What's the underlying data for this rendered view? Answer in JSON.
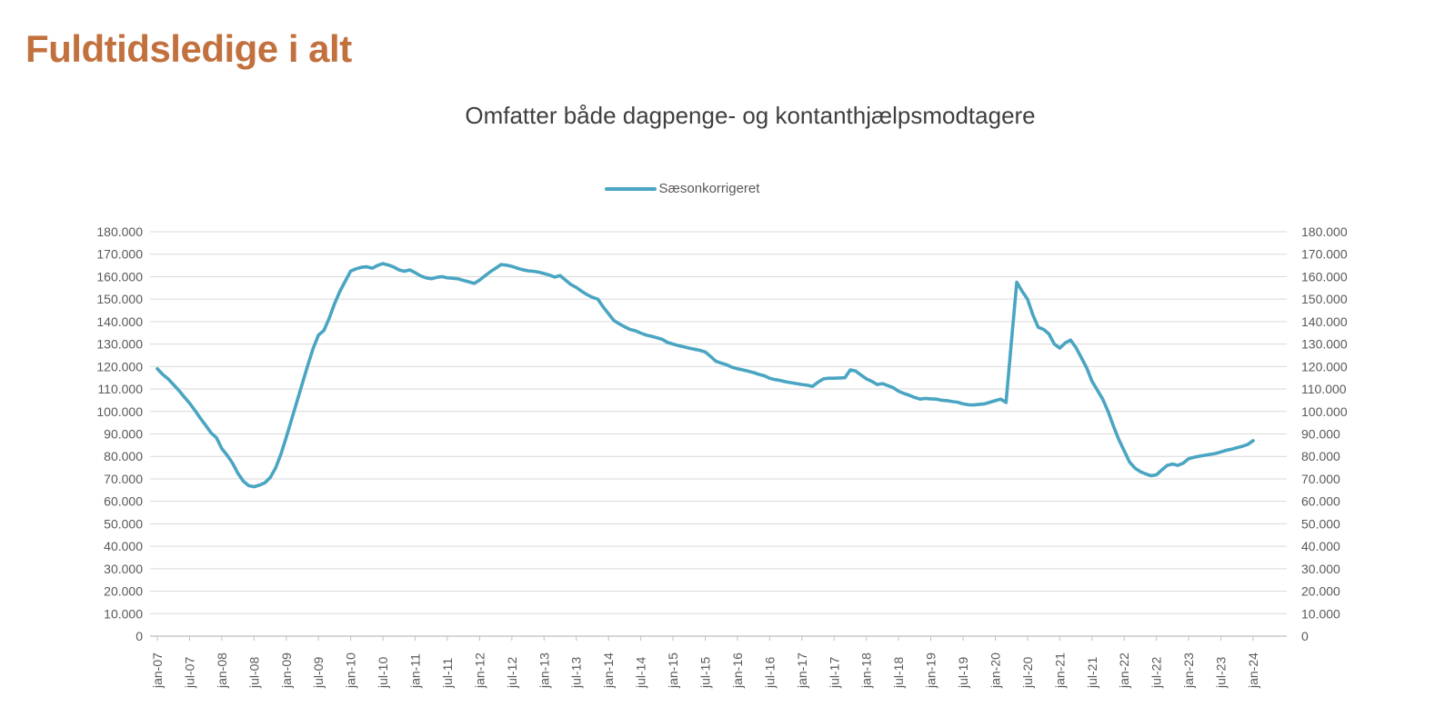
{
  "page": {
    "title": "Fuldtidsledige i alt"
  },
  "colors": {
    "page_title": "#C2713E",
    "chart_title": "#3F3F3F",
    "axis_label": "#595959",
    "gridline": "#D9D9D9",
    "axis_line": "#BFBFBF",
    "series_line": "#4AA5C2"
  },
  "chart_data": {
    "type": "line",
    "title": "Omfatter både dagpenge- og kontanthjælpsmodtagere",
    "legend_position": "top-center",
    "grid": true,
    "x_frequency": "monthly",
    "x_range": [
      "jan-07",
      "jan-24"
    ],
    "x_tick_labels": [
      "jan-07",
      "jul-07",
      "jan-08",
      "jul-08",
      "jan-09",
      "jul-09",
      "jan-10",
      "jul-10",
      "jan-11",
      "jul-11",
      "jan-12",
      "jul-12",
      "jan-13",
      "jul-13",
      "jan-14",
      "jul-14",
      "jan-15",
      "jul-15",
      "jan-16",
      "jul-16",
      "jan-17",
      "jul-17",
      "jan-18",
      "jul-18",
      "jan-19",
      "jul-19",
      "jan-20",
      "jul-20",
      "jan-21",
      "jul-21",
      "jan-22",
      "jul-22",
      "jan-23",
      "jul-23",
      "jan-24"
    ],
    "y_axis": {
      "min": 0,
      "max": 180000,
      "step": 10000,
      "mirrored_right_axis": true,
      "tick_labels": [
        "0",
        "10.000",
        "20.000",
        "30.000",
        "40.000",
        "50.000",
        "60.000",
        "70.000",
        "80.000",
        "90.000",
        "100.000",
        "110.000",
        "120.000",
        "130.000",
        "140.000",
        "150.000",
        "160.000",
        "170.000",
        "180.000"
      ]
    },
    "series": [
      {
        "name": "Sæsonkorrigeret",
        "color": "#4AA5C2",
        "values": [
          119000,
          116500,
          114500,
          112000,
          109400,
          106500,
          103700,
          100500,
          97000,
          93800,
          90500,
          88300,
          83500,
          80500,
          77000,
          72500,
          69000,
          67000,
          66500,
          67200,
          68200,
          70500,
          74800,
          81000,
          88500,
          96500,
          104500,
          112500,
          120500,
          128000,
          134000,
          136000,
          141500,
          148000,
          153500,
          158000,
          162500,
          163500,
          164200,
          164400,
          163800,
          165000,
          165800,
          165200,
          164300,
          163000,
          162400,
          163000,
          161800,
          160400,
          159500,
          159100,
          159700,
          160000,
          159500,
          159300,
          159000,
          158300,
          157700,
          157000,
          158500,
          160400,
          162200,
          163800,
          165400,
          165100,
          164600,
          163800,
          163100,
          162600,
          162400,
          162000,
          161400,
          160700,
          159800,
          160500,
          158500,
          156500,
          155200,
          153500,
          152000,
          150800,
          150000,
          146500,
          143500,
          140500,
          139000,
          137700,
          136500,
          135900,
          134900,
          134000,
          133500,
          132800,
          132100,
          130700,
          130000,
          129300,
          128800,
          128200,
          127700,
          127200,
          126500,
          124500,
          122300,
          121500,
          120800,
          119700,
          119000,
          118500,
          117900,
          117300,
          116500,
          115900,
          114800,
          114200,
          113800,
          113200,
          112800,
          112400,
          112000,
          111700,
          111200,
          113000,
          114500,
          114800,
          114800,
          114900,
          115000,
          118500,
          118000,
          116200,
          114500,
          113400,
          112000,
          112400,
          111500,
          110600,
          109000,
          108000,
          107200,
          106200,
          105500,
          105800,
          105600,
          105500,
          105000,
          104800,
          104400,
          104100,
          103400,
          103000,
          102900,
          103200,
          103400,
          104100,
          104800,
          105500,
          104000,
          131000,
          157500,
          153500,
          150000,
          143000,
          137500,
          136500,
          134500,
          130000,
          128200,
          130500,
          131800,
          128500,
          124000,
          119500,
          113500,
          109500,
          105500,
          100000,
          93500,
          87500,
          82500,
          77500,
          74800,
          73200,
          72200,
          71400,
          71800,
          74000,
          76000,
          76600,
          76000,
          77000,
          79000,
          79600,
          80100,
          80500,
          80900,
          81300,
          82000,
          82700,
          83200,
          83900,
          84500,
          85300,
          87000
        ]
      }
    ]
  }
}
